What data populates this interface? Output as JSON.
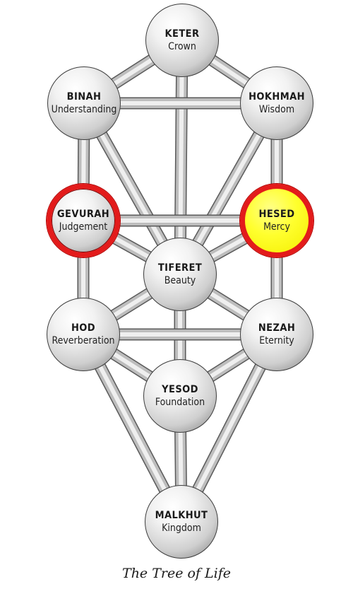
{
  "sephirot": {
    "keter": {
      "name": "KETER",
      "meaning": "Crown"
    },
    "binah": {
      "name": "BINAH",
      "meaning": "Understanding"
    },
    "hokhmah": {
      "name": "HOKHMAH",
      "meaning": "Wisdom"
    },
    "gevurah": {
      "name": "GEVURAH",
      "meaning": "Judgement",
      "highlight": "#e31b1b"
    },
    "hesed": {
      "name": "HESED",
      "meaning": "Mercy",
      "highlight": "#e31b1b",
      "fill": "#ffff2e"
    },
    "tiferet": {
      "name": "TIFERET",
      "meaning": "Beauty"
    },
    "hod": {
      "name": "HOD",
      "meaning": "Reverberation"
    },
    "nezah": {
      "name": "NEZAH",
      "meaning": "Eternity"
    },
    "yesod": {
      "name": "YESOD",
      "meaning": "Foundation"
    },
    "malkhut": {
      "name": "MALKHUT",
      "meaning": "Kingdom"
    }
  },
  "paths": [
    [
      "keter",
      "binah"
    ],
    [
      "keter",
      "hokhmah"
    ],
    [
      "keter",
      "tiferet"
    ],
    [
      "binah",
      "hokhmah"
    ],
    [
      "binah",
      "gevurah"
    ],
    [
      "binah",
      "tiferet"
    ],
    [
      "hokhmah",
      "hesed"
    ],
    [
      "hokhmah",
      "tiferet"
    ],
    [
      "gevurah",
      "hesed"
    ],
    [
      "gevurah",
      "tiferet"
    ],
    [
      "gevurah",
      "hod"
    ],
    [
      "hesed",
      "tiferet"
    ],
    [
      "hesed",
      "nezah"
    ],
    [
      "tiferet",
      "hod"
    ],
    [
      "tiferet",
      "nezah"
    ],
    [
      "tiferet",
      "yesod"
    ],
    [
      "hod",
      "nezah"
    ],
    [
      "hod",
      "yesod"
    ],
    [
      "hod",
      "malkhut"
    ],
    [
      "nezah",
      "yesod"
    ],
    [
      "nezah",
      "malkhut"
    ],
    [
      "yesod",
      "malkhut"
    ]
  ],
  "caption": "The Tree of Life"
}
